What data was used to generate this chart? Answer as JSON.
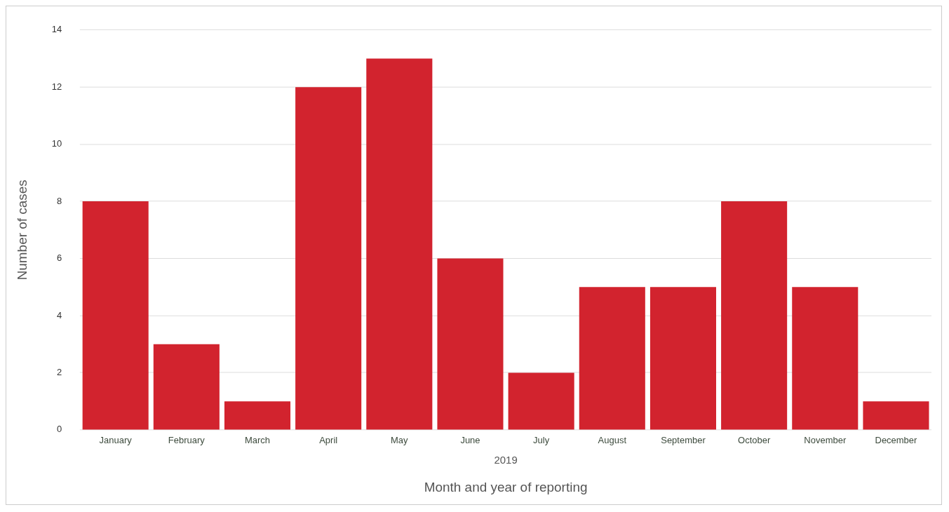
{
  "chart_data": {
    "type": "bar",
    "xlabel": "Month and year of reporting",
    "ylabel": "Number of cases",
    "categories": [
      "January",
      "February",
      "March",
      "April",
      "May",
      "June",
      "July",
      "August",
      "September",
      "October",
      "November",
      "December"
    ],
    "values": [
      8,
      3,
      1,
      12,
      13,
      6,
      2,
      5,
      5,
      8,
      5,
      1
    ],
    "color": "#d2232e",
    "ylim": [
      0,
      14
    ],
    "yticks": [
      0,
      2,
      4,
      6,
      8,
      10,
      12,
      14
    ],
    "grid": "y",
    "annotations": [
      "2019"
    ]
  }
}
